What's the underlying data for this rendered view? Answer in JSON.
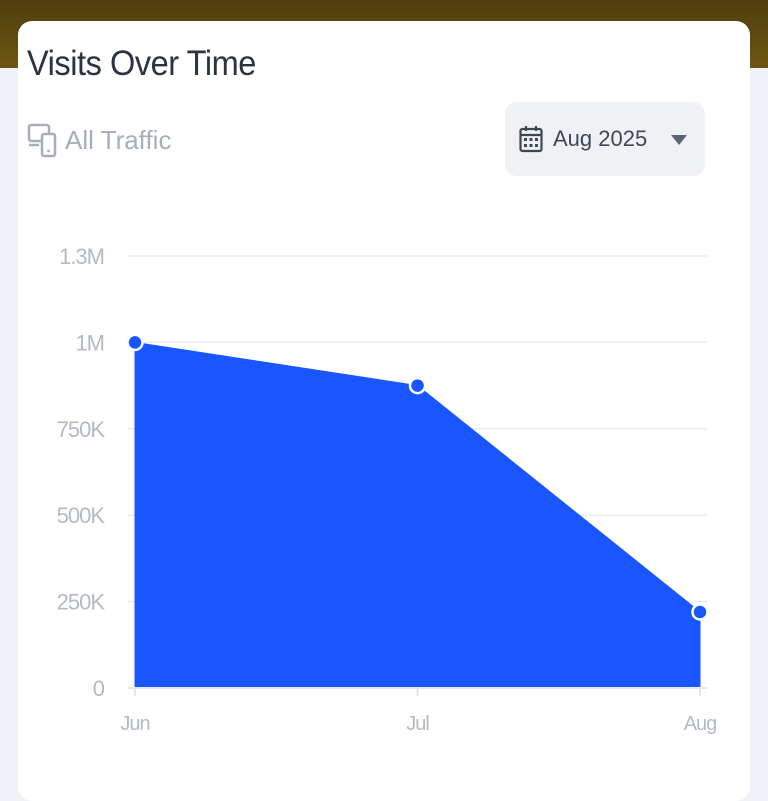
{
  "card": {
    "title": "Visits Over Time",
    "traffic_label": "All Traffic",
    "traffic_icon": "devices-icon",
    "date_label": "Aug 2025",
    "date_icon": "calendar-icon",
    "dropdown_icon": "caret-down-icon"
  },
  "colors": {
    "header_bar": "#5c4a10",
    "area_fill": "#1a56ff",
    "gridline": "#e8ebef",
    "tick_text": "#b4b9c2",
    "title_text": "#2a3342"
  },
  "chart_data": {
    "type": "area",
    "x": [
      "Jun",
      "Jul",
      "Aug"
    ],
    "values": [
      1000000,
      875000,
      220000
    ],
    "ylim": [
      0,
      1250000
    ],
    "yticks": [
      {
        "value": 0,
        "label": "0"
      },
      {
        "value": 250000,
        "label": "250K"
      },
      {
        "value": 500000,
        "label": "500K"
      },
      {
        "value": 750000,
        "label": "750K"
      },
      {
        "value": 1000000,
        "label": "1M"
      },
      {
        "value": 1250000,
        "label": "1.3M"
      }
    ],
    "grid": true,
    "legend": "none",
    "markers": true
  }
}
